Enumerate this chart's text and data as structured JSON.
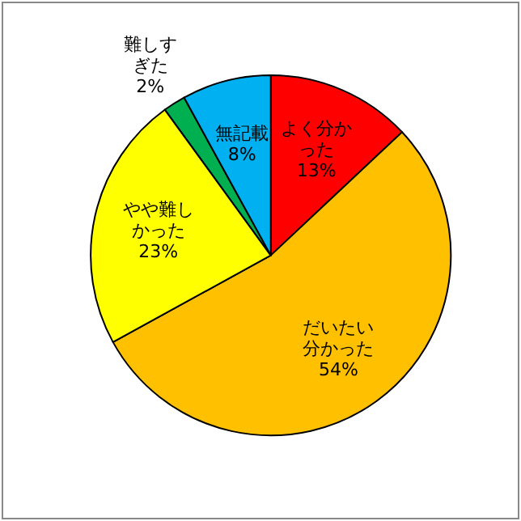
{
  "chart_data": {
    "type": "pie",
    "categories": [
      "よく分かった",
      "だいたい分かった",
      "やや難しかった",
      "難しすぎた",
      "無記載"
    ],
    "values": [
      13,
      54,
      23,
      2,
      8
    ],
    "value_labels": [
      "13%",
      "54%",
      "23%",
      "2%",
      "8%"
    ],
    "colors": [
      "#ff0000",
      "#ffc000",
      "#ffff00",
      "#00b050",
      "#00b0f0"
    ],
    "legend": false
  }
}
